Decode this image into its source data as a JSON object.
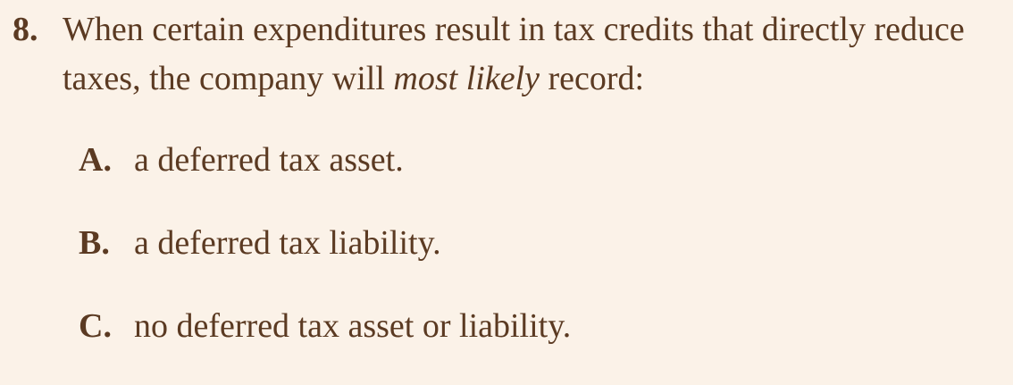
{
  "question": {
    "number": "8.",
    "text_before": "When certain expenditures result in tax credits that directly reduce taxes, the company will ",
    "emphasis": "most likely",
    "text_after": " record:"
  },
  "options": [
    {
      "letter": "A.",
      "text": "a deferred tax asset."
    },
    {
      "letter": "B.",
      "text": "a deferred tax liability."
    },
    {
      "letter": "C.",
      "text": "no deferred tax asset or liability."
    }
  ]
}
